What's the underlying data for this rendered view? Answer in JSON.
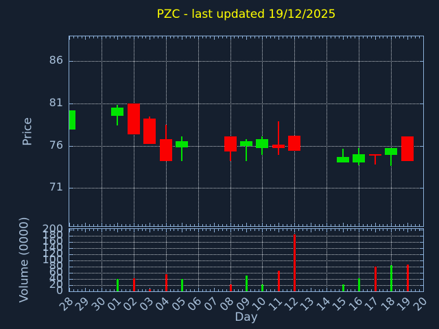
{
  "title": {
    "text": "PZC - last updated 19/12/2025",
    "color": "#ffff00"
  },
  "colors": {
    "background": "#151f2e",
    "axis": "#8cb0d9",
    "tick_label": "#a8c0da",
    "grid": "#c0c6cc",
    "up": "#00e400",
    "down": "#fa0000"
  },
  "chart_data": [
    {
      "type": "candlestick",
      "title": "PZC - last updated 19/12/2025",
      "ylabel": "Price",
      "ylim": [
        66.5,
        88.9
      ],
      "yticks": [
        71,
        76,
        81,
        86
      ],
      "grid": "dotted, vertical line every 2 days",
      "x_categories": [
        "28",
        "29",
        "30",
        "01",
        "02",
        "03",
        "04",
        "05",
        "06",
        "07",
        "08",
        "09",
        "10",
        "11",
        "12",
        "13",
        "14",
        "15",
        "16",
        "17",
        "18",
        "19",
        "20"
      ],
      "candles": [
        {
          "day": "28",
          "open": 77.9,
          "high": 80.2,
          "low": 77.9,
          "close": 80.2
        },
        {
          "day": "01",
          "open": 79.5,
          "high": 80.8,
          "low": 78.4,
          "close": 80.5
        },
        {
          "day": "02",
          "open": 81.0,
          "high": 81.0,
          "low": 77.3,
          "close": 77.3
        },
        {
          "day": "03",
          "open": 79.2,
          "high": 79.4,
          "low": 76.2,
          "close": 76.2
        },
        {
          "day": "04",
          "open": 76.8,
          "high": 78.5,
          "low": 74.2,
          "close": 74.2
        },
        {
          "day": "05",
          "open": 75.8,
          "high": 77.1,
          "low": 74.2,
          "close": 76.5
        },
        {
          "day": "08",
          "open": 77.1,
          "high": 77.1,
          "low": 74.2,
          "close": 75.3
        },
        {
          "day": "09",
          "open": 76.0,
          "high": 76.8,
          "low": 74.2,
          "close": 76.5
        },
        {
          "day": "10",
          "open": 75.7,
          "high": 77.1,
          "low": 74.9,
          "close": 76.8
        },
        {
          "day": "11",
          "open": 76.1,
          "high": 78.9,
          "low": 74.9,
          "close": 75.7
        },
        {
          "day": "12",
          "open": 77.2,
          "high": 77.2,
          "low": 75.4,
          "close": 75.4
        },
        {
          "day": "15",
          "open": 74.0,
          "high": 75.6,
          "low": 74.0,
          "close": 74.7
        },
        {
          "day": "16",
          "open": 74.0,
          "high": 75.7,
          "low": 73.7,
          "close": 75.0
        },
        {
          "day": "17",
          "open": 75.0,
          "high": 75.0,
          "low": 73.8,
          "close": 74.8
        },
        {
          "day": "18",
          "open": 74.9,
          "high": 75.7,
          "low": 73.6,
          "close": 75.7
        },
        {
          "day": "19",
          "open": 77.1,
          "high": 77.1,
          "low": 74.2,
          "close": 74.2
        }
      ]
    },
    {
      "type": "bar",
      "ylabel": "Volume (0000)",
      "xlabel": "Day",
      "ylim": [
        0,
        203
      ],
      "yticks": [
        0,
        20,
        40,
        60,
        80,
        100,
        120,
        140,
        160,
        180,
        200
      ],
      "bars": [
        {
          "day": "01",
          "value": 40,
          "direction": "up"
        },
        {
          "day": "02",
          "value": 43,
          "direction": "down"
        },
        {
          "day": "03",
          "value": 7,
          "direction": "down"
        },
        {
          "day": "04",
          "value": 55,
          "direction": "down"
        },
        {
          "day": "05",
          "value": 40,
          "direction": "up"
        },
        {
          "day": "08",
          "value": 22,
          "direction": "down"
        },
        {
          "day": "09",
          "value": 52,
          "direction": "up"
        },
        {
          "day": "10",
          "value": 22,
          "direction": "up"
        },
        {
          "day": "11",
          "value": 66,
          "direction": "down"
        },
        {
          "day": "12",
          "value": 186,
          "direction": "down"
        },
        {
          "day": "15",
          "value": 22,
          "direction": "up"
        },
        {
          "day": "16",
          "value": 42,
          "direction": "up"
        },
        {
          "day": "17",
          "value": 80,
          "direction": "down"
        },
        {
          "day": "18",
          "value": 84,
          "direction": "up"
        },
        {
          "day": "19",
          "value": 88,
          "direction": "down"
        }
      ]
    }
  ]
}
